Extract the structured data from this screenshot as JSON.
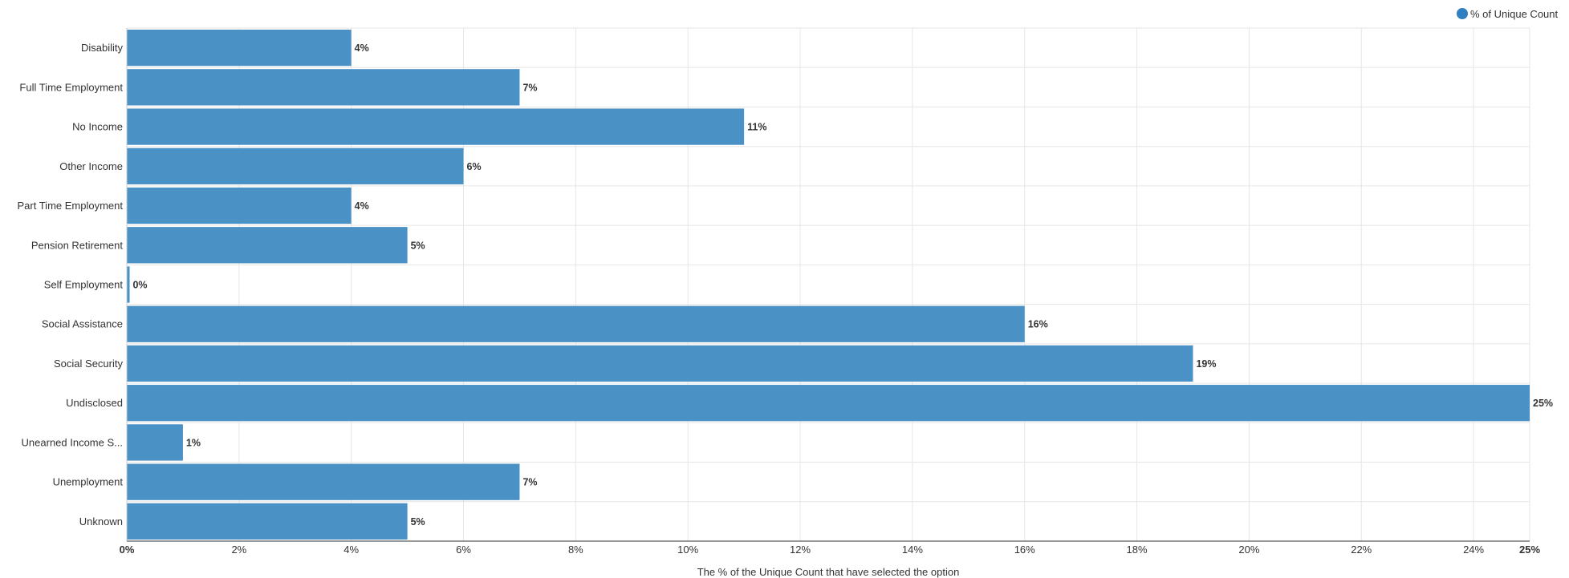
{
  "legend": {
    "label": "% of Unique Count"
  },
  "colors": {
    "bar": "#4a91c6",
    "legend_dot": "#2f7fc1",
    "grid": "#e6e6e6",
    "axis": "#333333"
  },
  "chart_data": {
    "type": "bar",
    "orientation": "horizontal",
    "categories": [
      "Disability",
      "Full Time Employment",
      "No Income",
      "Other Income",
      "Part Time Employment",
      "Pension Retirement",
      "Self Employment",
      "Social Assistance",
      "Social Security",
      "Undisclosed",
      "Unearned Income S...",
      "Unemployment",
      "Unknown"
    ],
    "series": [
      {
        "name": "% of Unique Count",
        "values": [
          4,
          7,
          11,
          6,
          4,
          5,
          0.05,
          16,
          19,
          25,
          1,
          7,
          5
        ],
        "labels": [
          "4%",
          "7%",
          "11%",
          "6%",
          "4%",
          "5%",
          "0%",
          "16%",
          "19%",
          "25%",
          "1%",
          "7%",
          "5%"
        ]
      }
    ],
    "xlim": [
      0,
      25
    ],
    "xticks": [
      0,
      2,
      4,
      6,
      8,
      10,
      12,
      14,
      16,
      18,
      20,
      22,
      24,
      25
    ],
    "xtick_labels": [
      "0%",
      "2%",
      "4%",
      "6%",
      "8%",
      "10%",
      "12%",
      "14%",
      "16%",
      "18%",
      "20%",
      "22%",
      "24%",
      "25%"
    ],
    "xlabel": "The % of the Unique Count that have selected the option",
    "ylabel": "",
    "title": "",
    "grid": true,
    "legend_position": "top-right"
  }
}
